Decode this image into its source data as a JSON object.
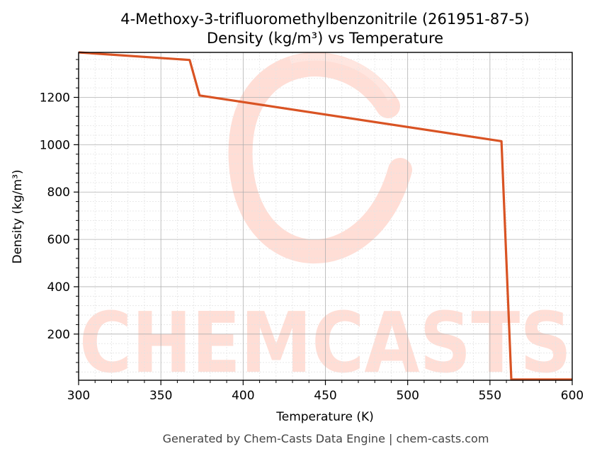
{
  "chart_data": {
    "type": "line",
    "title": "4-Methoxy-3-trifluoromethylbenzonitrile (261951-87-5)",
    "subtitle": "Density (kg/m³) vs Temperature",
    "xlabel": "Temperature (K)",
    "ylabel": "Density (kg/m³)",
    "xlim": [
      300,
      600
    ],
    "ylim": [
      5,
      1390
    ],
    "xticks": [
      300,
      350,
      400,
      450,
      500,
      550,
      600
    ],
    "yticks": [
      200,
      400,
      600,
      800,
      1000,
      1200
    ],
    "grid": true,
    "line_color": "#d95323",
    "series": [
      {
        "x": [
          300,
          367.5,
          373.5,
          557,
          563,
          600
        ],
        "y": [
          1390,
          1358,
          1208,
          1015,
          8,
          8
        ]
      }
    ]
  },
  "watermark": "CHEMCASTS",
  "footer": "Generated by Chem-Casts Data Engine | chem-casts.com"
}
